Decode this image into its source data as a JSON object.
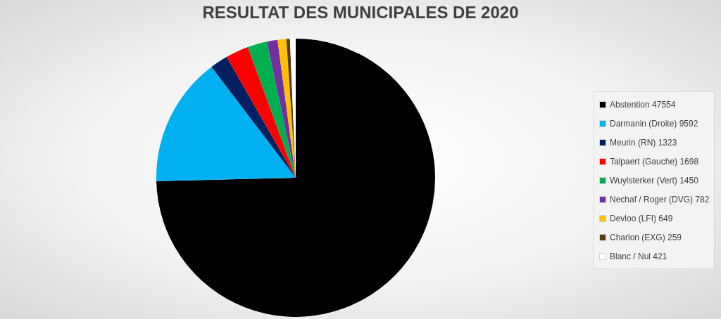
{
  "chart_data": {
    "type": "pie",
    "title": "RESULTAT DES MUNICIPALES DE 2020",
    "categories": [
      "Abstention 47554",
      "Darmanin (Droite) 9592",
      "Meurin (RN) 1323",
      "Talpaert (Gauche) 1698",
      "Wuylsterker (Vert) 1450",
      "Nechaf / Roger (DVG) 782",
      "Devloo (LFI) 649",
      "Charlon (EXG) 259",
      "Blanc / Nul 421"
    ],
    "values": [
      47554,
      9592,
      1323,
      1698,
      1450,
      782,
      649,
      259,
      421
    ],
    "colors": [
      "#000000",
      "#00b0f0",
      "#002060",
      "#ff0000",
      "#00b050",
      "#7030a0",
      "#ffc000",
      "#5b3a16",
      "#ffffff"
    ],
    "legend": "right"
  }
}
